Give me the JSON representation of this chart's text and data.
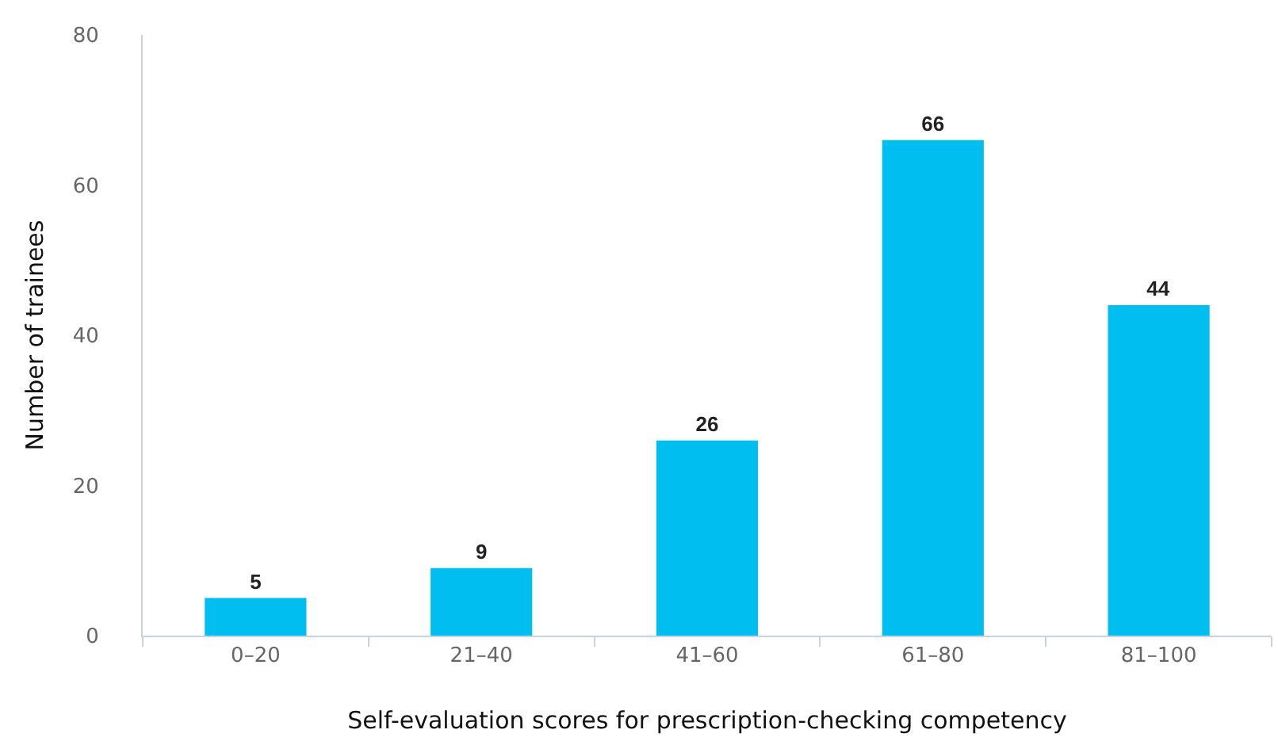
{
  "chart_data": {
    "type": "bar",
    "xlabel": "Self-evaluation scores for prescription-checking competency",
    "ylabel": "Number of trainees",
    "categories": [
      "0–20",
      "21–40",
      "41–60",
      "61–80",
      "81–100"
    ],
    "values": [
      5,
      9,
      26,
      66,
      44
    ],
    "color": "#00bef0",
    "ylim": [
      0,
      80
    ],
    "yticks": [
      0,
      20,
      40,
      60,
      80
    ],
    "grid": false,
    "data_labels": true
  }
}
